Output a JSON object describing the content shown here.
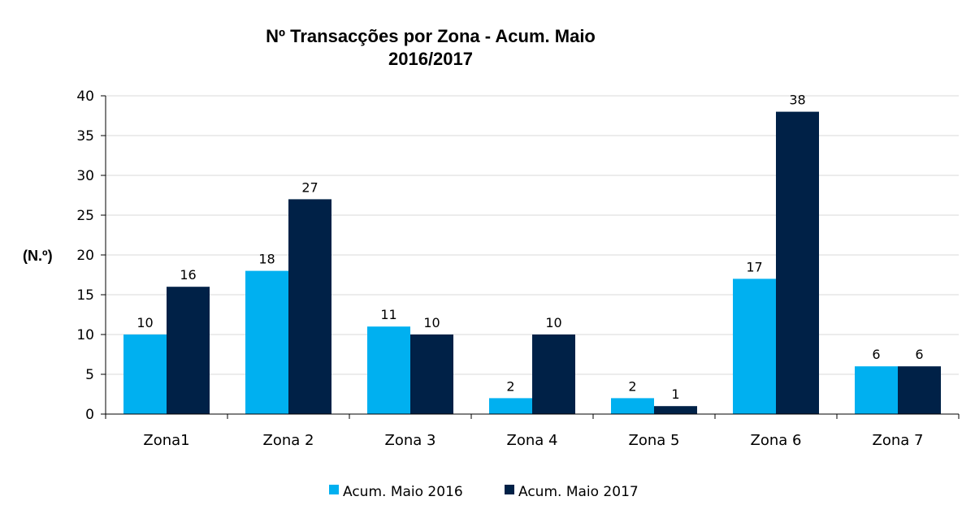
{
  "chart_data": {
    "type": "bar",
    "title": "Nº Transacções por Zona - Acum. Maio",
    "subtitle": "2016/2017",
    "xlabel": "",
    "ylabel": "(N.º)",
    "ylim": [
      0,
      40
    ],
    "yticks": [
      0,
      5,
      10,
      15,
      20,
      25,
      30,
      35,
      40
    ],
    "grid": true,
    "legend_position": "bottom",
    "categories": [
      "Zona1",
      "Zona 2",
      "Zona 3",
      "Zona 4",
      "Zona 5",
      "Zona 6",
      "Zona 7"
    ],
    "series": [
      {
        "name": "Acum. Maio 2016",
        "color": "#00b0f0",
        "values": [
          10,
          18,
          11,
          2,
          2,
          17,
          6
        ]
      },
      {
        "name": "Acum. Maio 2017",
        "color": "#002147",
        "values": [
          16,
          27,
          10,
          10,
          1,
          38,
          6
        ]
      }
    ]
  }
}
